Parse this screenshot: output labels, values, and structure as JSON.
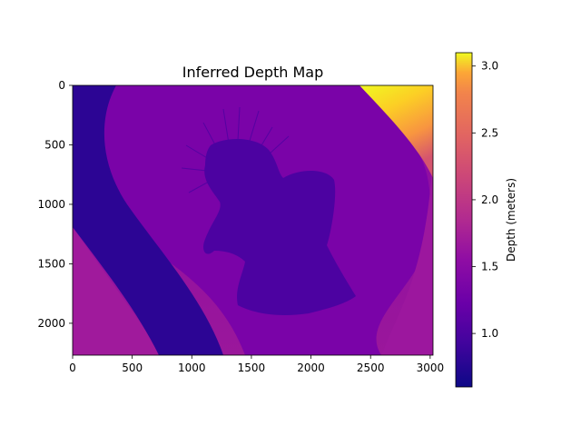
{
  "chart_data": {
    "type": "heatmap",
    "title": "Inferred Depth Map",
    "xlabel": "",
    "ylabel": "",
    "x_ticks": [
      0,
      500,
      1000,
      1500,
      2000,
      2500,
      3000
    ],
    "y_ticks": [
      0,
      500,
      1000,
      1500,
      2000
    ],
    "xlim": [
      0,
      3024
    ],
    "ylim": [
      2268,
      0
    ],
    "colormap": "plasma",
    "colorbar": {
      "label": "Depth (meters)",
      "range": [
        0.6,
        3.1
      ],
      "ticks": [
        "1.0",
        "1.5",
        "2.0",
        "2.5",
        "3.0"
      ],
      "tick_values": [
        1.0,
        1.5,
        2.0,
        2.5,
        3.0
      ]
    },
    "regions": [
      {
        "name": "background",
        "depth": 1.25
      },
      {
        "name": "diagonal-band",
        "depth": 0.75
      },
      {
        "name": "curved-wall",
        "depth": 1.05
      },
      {
        "name": "lower-left-corner",
        "depth": 1.4
      },
      {
        "name": "right-corner",
        "depth": 1.35
      },
      {
        "name": "top-right-far",
        "depth": 3.0
      },
      {
        "name": "person",
        "depth": 0.9
      }
    ]
  }
}
